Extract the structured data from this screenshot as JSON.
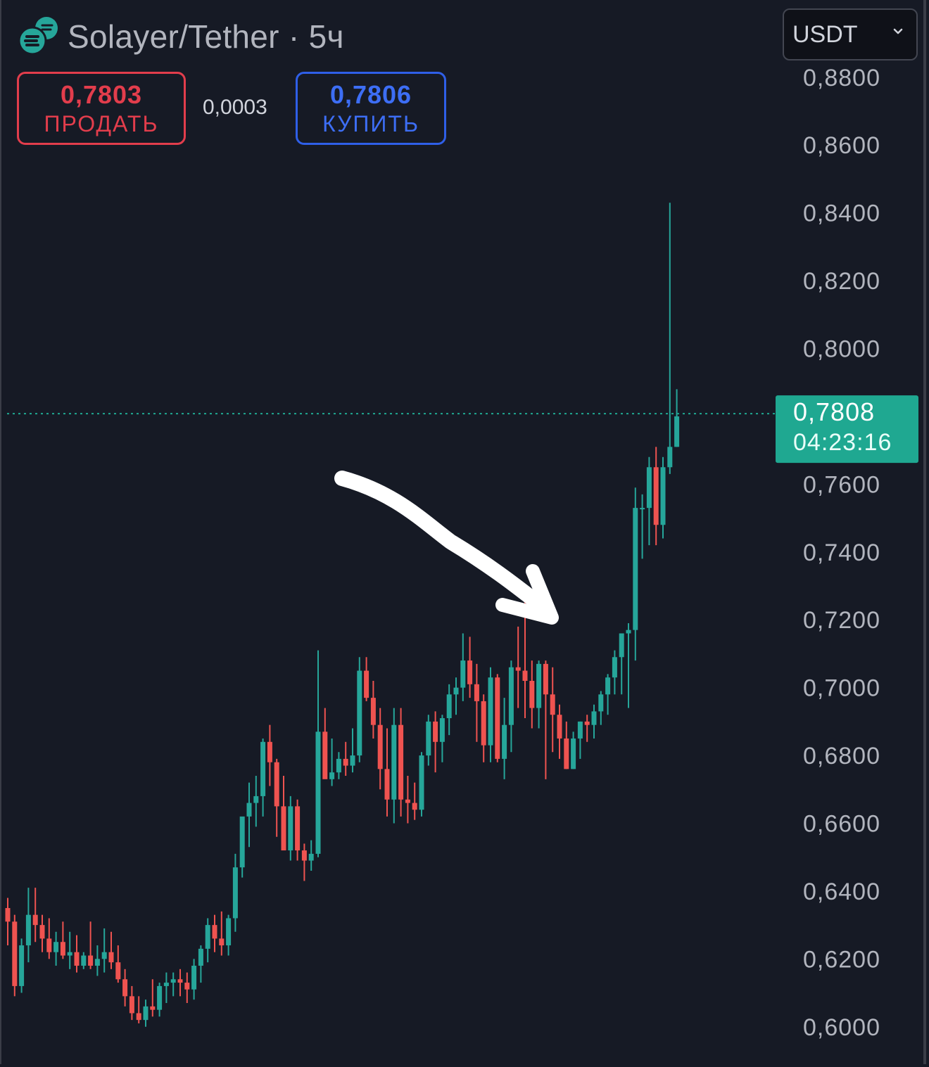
{
  "header": {
    "title": "Solayer/Tether · 5ч",
    "logo_icon": "solayer-tether-logo-icon"
  },
  "currency_select": {
    "value": "USDT",
    "icon": "chevron-down-icon"
  },
  "trade": {
    "sell_price": "0,7803",
    "sell_label": "ПРОДАТЬ",
    "spread": "0,0003",
    "buy_price": "0,7806",
    "buy_label": "КУПИТЬ"
  },
  "colors": {
    "background": "#161a25",
    "up": "#26a69a",
    "down": "#ef5350",
    "sell": "#e23d4c",
    "buy": "#2f5fe8",
    "price_tag": "#1fa891"
  },
  "chart_data": {
    "type": "candlestick",
    "symbol": "Solayer/Tether",
    "interval": "5ч",
    "y_ticks": [
      "0,8800",
      "0,8600",
      "0,8400",
      "0,8200",
      "0,8000",
      "0,7600",
      "0,7400",
      "0,7200",
      "0,7000",
      "0,6800",
      "0,6600",
      "0,6400",
      "0,6200",
      "0,6000"
    ],
    "ylim": [
      0.5985,
      0.881
    ],
    "last_price": {
      "value": 0.7808,
      "label": "0,7808",
      "countdown": "04:23:16"
    },
    "candles": [
      [
        0.635,
        0.638,
        0.624,
        0.631
      ],
      [
        0.631,
        0.633,
        0.609,
        0.612
      ],
      [
        0.612,
        0.626,
        0.61,
        0.624
      ],
      [
        0.624,
        0.641,
        0.619,
        0.633
      ],
      [
        0.633,
        0.641,
        0.625,
        0.63
      ],
      [
        0.63,
        0.633,
        0.622,
        0.626
      ],
      [
        0.626,
        0.632,
        0.62,
        0.622
      ],
      [
        0.622,
        0.628,
        0.618,
        0.625
      ],
      [
        0.625,
        0.631,
        0.62,
        0.621
      ],
      [
        0.621,
        0.628,
        0.617,
        0.622
      ],
      [
        0.622,
        0.627,
        0.616,
        0.618
      ],
      [
        0.618,
        0.622,
        0.617,
        0.621
      ],
      [
        0.621,
        0.631,
        0.617,
        0.618
      ],
      [
        0.618,
        0.624,
        0.615,
        0.62
      ],
      [
        0.62,
        0.629,
        0.616,
        0.622
      ],
      [
        0.622,
        0.628,
        0.617,
        0.619
      ],
      [
        0.619,
        0.624,
        0.613,
        0.614
      ],
      [
        0.614,
        0.617,
        0.606,
        0.609
      ],
      [
        0.609,
        0.612,
        0.602,
        0.604
      ],
      [
        0.604,
        0.609,
        0.601,
        0.602
      ],
      [
        0.602,
        0.608,
        0.6,
        0.606
      ],
      [
        0.606,
        0.614,
        0.603,
        0.605
      ],
      [
        0.605,
        0.613,
        0.603,
        0.612
      ],
      [
        0.612,
        0.616,
        0.607,
        0.613
      ],
      [
        0.613,
        0.616,
        0.609,
        0.614
      ],
      [
        0.614,
        0.617,
        0.609,
        0.613
      ],
      [
        0.613,
        0.616,
        0.607,
        0.611
      ],
      [
        0.611,
        0.62,
        0.608,
        0.618
      ],
      [
        0.618,
        0.624,
        0.613,
        0.623
      ],
      [
        0.623,
        0.632,
        0.619,
        0.63
      ],
      [
        0.63,
        0.633,
        0.622,
        0.626
      ],
      [
        0.626,
        0.634,
        0.621,
        0.624
      ],
      [
        0.624,
        0.633,
        0.621,
        0.632
      ],
      [
        0.632,
        0.651,
        0.628,
        0.647
      ],
      [
        0.647,
        0.661,
        0.644,
        0.662
      ],
      [
        0.662,
        0.672,
        0.653,
        0.666
      ],
      [
        0.666,
        0.674,
        0.659,
        0.668
      ],
      [
        0.668,
        0.685,
        0.662,
        0.684
      ],
      [
        0.684,
        0.689,
        0.671,
        0.678
      ],
      [
        0.678,
        0.679,
        0.656,
        0.665
      ],
      [
        0.665,
        0.674,
        0.653,
        0.652
      ],
      [
        0.652,
        0.668,
        0.649,
        0.665
      ],
      [
        0.665,
        0.667,
        0.649,
        0.652
      ],
      [
        0.652,
        0.654,
        0.643,
        0.649
      ],
      [
        0.649,
        0.655,
        0.646,
        0.651
      ],
      [
        0.651,
        0.711,
        0.65,
        0.687
      ],
      [
        0.687,
        0.694,
        0.674,
        0.673
      ],
      [
        0.673,
        0.685,
        0.671,
        0.675
      ],
      [
        0.675,
        0.681,
        0.673,
        0.679
      ],
      [
        0.679,
        0.684,
        0.674,
        0.677
      ],
      [
        0.677,
        0.688,
        0.675,
        0.68
      ],
      [
        0.68,
        0.709,
        0.678,
        0.705
      ],
      [
        0.705,
        0.709,
        0.696,
        0.697
      ],
      [
        0.697,
        0.702,
        0.685,
        0.689
      ],
      [
        0.689,
        0.694,
        0.67,
        0.676
      ],
      [
        0.676,
        0.688,
        0.662,
        0.667
      ],
      [
        0.667,
        0.694,
        0.66,
        0.689
      ],
      [
        0.689,
        0.694,
        0.662,
        0.667
      ],
      [
        0.667,
        0.674,
        0.66,
        0.666
      ],
      [
        0.666,
        0.672,
        0.661,
        0.664
      ],
      [
        0.664,
        0.681,
        0.662,
        0.68
      ],
      [
        0.68,
        0.692,
        0.677,
        0.69
      ],
      [
        0.69,
        0.693,
        0.675,
        0.684
      ],
      [
        0.684,
        0.692,
        0.678,
        0.691
      ],
      [
        0.691,
        0.701,
        0.686,
        0.698
      ],
      [
        0.698,
        0.703,
        0.692,
        0.7
      ],
      [
        0.7,
        0.716,
        0.696,
        0.708
      ],
      [
        0.708,
        0.715,
        0.697,
        0.701
      ],
      [
        0.701,
        0.707,
        0.684,
        0.696
      ],
      [
        0.696,
        0.698,
        0.678,
        0.683
      ],
      [
        0.683,
        0.706,
        0.678,
        0.703
      ],
      [
        0.703,
        0.704,
        0.678,
        0.679
      ],
      [
        0.679,
        0.697,
        0.673,
        0.689
      ],
      [
        0.689,
        0.708,
        0.681,
        0.706
      ],
      [
        0.706,
        0.718,
        0.694,
        0.705
      ],
      [
        0.705,
        0.729,
        0.691,
        0.702
      ],
      [
        0.702,
        0.708,
        0.688,
        0.694
      ],
      [
        0.694,
        0.708,
        0.688,
        0.707
      ],
      [
        0.707,
        0.708,
        0.673,
        0.698
      ],
      [
        0.698,
        0.706,
        0.681,
        0.692
      ],
      [
        0.692,
        0.695,
        0.679,
        0.685
      ],
      [
        0.685,
        0.69,
        0.676,
        0.676
      ],
      [
        0.676,
        0.687,
        0.676,
        0.685
      ],
      [
        0.685,
        0.69,
        0.679,
        0.69
      ],
      [
        0.69,
        0.692,
        0.684,
        0.689
      ],
      [
        0.689,
        0.695,
        0.685,
        0.693
      ],
      [
        0.693,
        0.699,
        0.689,
        0.698
      ],
      [
        0.698,
        0.704,
        0.692,
        0.703
      ],
      [
        0.703,
        0.711,
        0.698,
        0.709
      ],
      [
        0.709,
        0.716,
        0.698,
        0.716
      ],
      [
        0.716,
        0.719,
        0.694,
        0.717
      ],
      [
        0.717,
        0.759,
        0.708,
        0.753
      ],
      [
        0.753,
        0.757,
        0.738,
        0.753
      ],
      [
        0.753,
        0.768,
        0.742,
        0.765
      ],
      [
        0.765,
        0.771,
        0.742,
        0.748
      ],
      [
        0.748,
        0.768,
        0.744,
        0.765
      ],
      [
        0.765,
        0.843,
        0.763,
        0.771
      ],
      [
        0.771,
        0.788,
        0.771,
        0.78
      ]
    ]
  }
}
